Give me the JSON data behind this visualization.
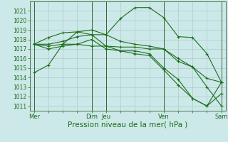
{
  "bg_color": "#cde8e8",
  "grid_color": "#aacccc",
  "line_color": "#1a6e1a",
  "marker_color": "#1a6e1a",
  "xlabel": "Pression niveau de la mer( hPa )",
  "xlabel_fontsize": 7.5,
  "ylim": [
    1010.5,
    1022.0
  ],
  "yticks": [
    1011,
    1012,
    1013,
    1014,
    1015,
    1016,
    1017,
    1018,
    1019,
    1020,
    1021
  ],
  "ytick_fontsize": 5.5,
  "xtick_labels": [
    "Mer",
    "",
    "",
    "",
    "Dim",
    "Jeu",
    "",
    "",
    "",
    "Ven",
    "",
    "",
    "",
    "Sam"
  ],
  "xtick_fontsize": 6.0,
  "vlines": [
    0,
    4,
    5,
    9,
    13
  ],
  "series": [
    {
      "x": [
        0,
        1,
        2,
        3,
        4,
        5,
        6,
        7,
        8,
        9,
        10,
        11,
        12,
        13
      ],
      "y": [
        1014.5,
        1015.3,
        1017.5,
        1018.8,
        1019.0,
        1018.5,
        1020.2,
        1021.35,
        1021.35,
        1020.3,
        1018.3,
        1018.2,
        1016.5,
        1013.5
      ]
    },
    {
      "x": [
        0,
        1,
        2,
        3,
        4,
        5,
        6,
        7,
        8,
        9,
        10,
        11,
        12,
        13
      ],
      "y": [
        1017.5,
        1018.2,
        1018.7,
        1018.8,
        1018.5,
        1018.5,
        1017.8,
        1017.5,
        1017.3,
        1017.0,
        1016.0,
        1015.1,
        1013.9,
        1013.5
      ]
    },
    {
      "x": [
        0,
        1,
        2,
        3,
        4,
        5,
        6,
        7,
        8,
        9,
        10,
        11,
        12,
        13
      ],
      "y": [
        1017.5,
        1017.3,
        1017.5,
        1017.5,
        1017.3,
        1017.3,
        1017.2,
        1017.2,
        1017.0,
        1017.0,
        1015.7,
        1015.1,
        1013.0,
        1011.0
      ]
    },
    {
      "x": [
        0,
        1,
        2,
        3,
        4,
        5,
        6,
        7,
        8,
        9,
        10,
        11,
        12,
        13
      ],
      "y": [
        1017.5,
        1017.5,
        1017.8,
        1018.3,
        1018.5,
        1017.3,
        1016.8,
        1016.8,
        1016.5,
        1015.0,
        1013.8,
        1011.8,
        1011.0,
        1013.5
      ]
    },
    {
      "x": [
        0,
        1,
        2,
        3,
        4,
        5,
        6,
        7,
        8,
        9,
        10,
        11,
        12,
        13
      ],
      "y": [
        1017.5,
        1017.0,
        1017.3,
        1017.5,
        1018.0,
        1017.0,
        1016.8,
        1016.5,
        1016.3,
        1014.8,
        1013.2,
        1011.8,
        1011.0,
        1012.3
      ]
    }
  ]
}
